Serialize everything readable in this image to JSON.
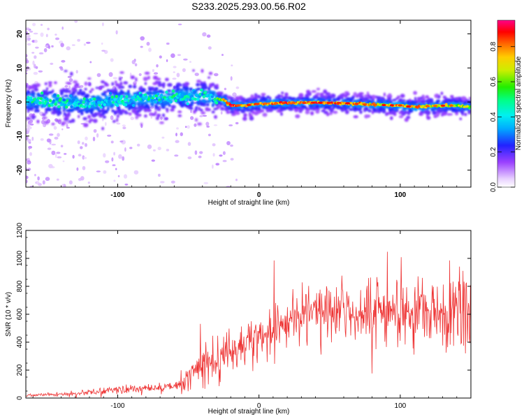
{
  "title": "S233.2025.293.00.56.R02",
  "chart_data": [
    {
      "type": "heatmap",
      "name": "spectrogram",
      "xlabel": "Height of straight line (km)",
      "ylabel": "Frequency (Hz)",
      "xlim": [
        -165,
        150
      ],
      "ylim": [
        -25,
        24
      ],
      "xticks": [
        -100,
        0,
        100
      ],
      "xtick_labels": [
        "-100",
        "0",
        "100"
      ],
      "yticks": [
        -20,
        -10,
        0,
        10,
        20
      ],
      "ytick_labels": [
        "-20",
        "-10",
        "0",
        "10",
        "20"
      ],
      "colorbar": {
        "label": "Normalized spectral amplitude",
        "range": [
          0,
          0.95
        ],
        "ticks": [
          0.0,
          0.2,
          0.4,
          0.6,
          0.8
        ],
        "tick_labels": [
          "0.0",
          "0.2",
          "0.4",
          "0.6",
          "0.8"
        ]
      },
      "ridge": {
        "x": [
          -165,
          -140,
          -120,
          -100,
          -80,
          -60,
          -40,
          -30,
          -25,
          -20,
          -10,
          0,
          20,
          40,
          60,
          80,
          100,
          110,
          120,
          140,
          150
        ],
        "frequency": [
          0.5,
          0.0,
          -0.5,
          0.5,
          1.0,
          1.5,
          2.0,
          1.0,
          0.5,
          -1.0,
          -1.0,
          -0.5,
          -0.3,
          -0.2,
          -0.3,
          -0.8,
          -1.0,
          -1.5,
          -1.2,
          -1.0,
          -1.5
        ],
        "peak_amplitude": [
          0.45,
          0.45,
          0.5,
          0.55,
          0.55,
          0.55,
          0.6,
          0.7,
          0.8,
          0.95,
          0.92,
          0.9,
          0.92,
          0.93,
          0.9,
          0.85,
          0.85,
          0.9,
          0.8,
          0.75,
          0.7
        ]
      }
    },
    {
      "type": "line",
      "name": "snr",
      "xlabel": "Height of straight line (km)",
      "ylabel": "SNR (10 * v/v)",
      "xlim": [
        -165,
        150
      ],
      "ylim": [
        0,
        1200
      ],
      "xticks": [
        -100,
        0,
        100
      ],
      "xtick_labels": [
        "-100",
        "0",
        "100"
      ],
      "yticks": [
        0,
        200,
        400,
        600,
        800,
        1000,
        1200
      ],
      "ytick_labels": [
        "0",
        "200",
        "400",
        "600",
        "800",
        "1000",
        "1200"
      ],
      "series": [
        {
          "name": "SNR",
          "color": "#ee3333",
          "x": [
            -165,
            -150,
            -130,
            -120,
            -100,
            -80,
            -60,
            -55,
            -50,
            -45,
            -40,
            -35,
            -30,
            -25,
            -20,
            -10,
            0,
            10,
            20,
            25,
            30,
            40,
            50,
            60,
            70,
            80,
            90,
            100,
            110,
            120,
            130,
            140,
            145,
            150
          ],
          "trend": [
            20,
            25,
            30,
            40,
            60,
            70,
            80,
            100,
            160,
            200,
            230,
            260,
            280,
            320,
            360,
            400,
            440,
            490,
            520,
            560,
            600,
            620,
            620,
            630,
            630,
            640,
            640,
            640,
            640,
            630,
            640,
            650,
            660,
            660
          ],
          "spread": [
            10,
            10,
            15,
            20,
            30,
            30,
            40,
            60,
            90,
            110,
            120,
            130,
            140,
            140,
            150,
            150,
            160,
            170,
            170,
            170,
            180,
            180,
            190,
            200,
            200,
            210,
            220,
            230,
            230,
            240,
            250,
            270,
            280,
            280
          ]
        }
      ]
    }
  ]
}
